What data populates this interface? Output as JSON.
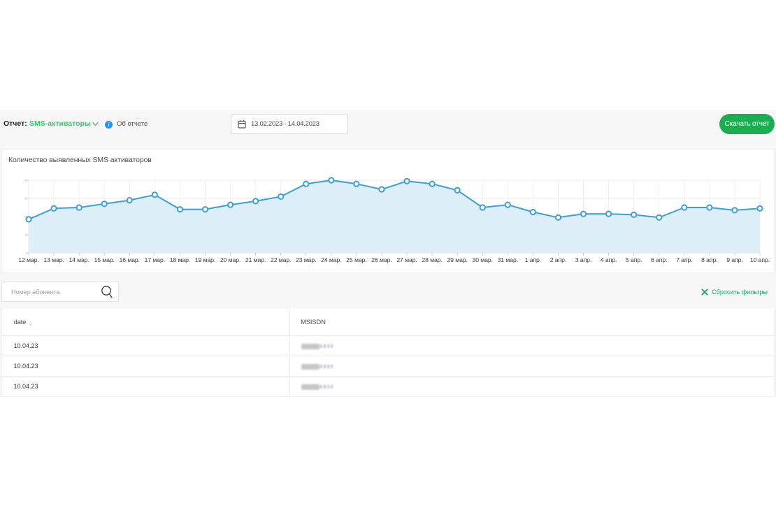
{
  "toolbar": {
    "report_label": "Отчет:",
    "report_value": "SMS-активаторы",
    "about_link": "Об отчете",
    "date_range": "13.02.2023 - 14.04.2023",
    "download_button": "Скачать отчет"
  },
  "colors": {
    "brand_green": "#27d163",
    "button_green": "#1bae50",
    "reset_green": "#12a562",
    "info_blue": "#2593fc",
    "chart_line": "#3ba0d8",
    "chart_fill": "#ddeef8",
    "band_background": "#f7f7f7"
  },
  "chart_data": {
    "type": "area",
    "title": "Количество выявленных SMS активаторов",
    "categories": [
      "12 мар.",
      "13 мар.",
      "14 мар.",
      "15 мар.",
      "16 мар.",
      "17 мар.",
      "18 мар.",
      "19 мар.",
      "20 мар.",
      "21 мар.",
      "22 мар.",
      "23 мар.",
      "24 мар.",
      "25 мар.",
      "26 мар.",
      "27 мар.",
      "28 мар.",
      "29 мар.",
      "30 мар.",
      "31 мар.",
      "1 апр.",
      "2 апр.",
      "3 апр.",
      "4 апр.",
      "5 апр.",
      "6 апр.",
      "7 апр.",
      "8 апр.",
      "9 апр.",
      "10 апр."
    ],
    "values": [
      37,
      49,
      50,
      54,
      58,
      64,
      48,
      48,
      53,
      57,
      62,
      76,
      80,
      76,
      70,
      79,
      76,
      69,
      50,
      53,
      45,
      39,
      43,
      43,
      42,
      39,
      50,
      50,
      47,
      49
    ],
    "xlabel": "",
    "ylabel": "",
    "ylim": [
      0,
      80
    ],
    "yticks": [
      0,
      20,
      40,
      60,
      80
    ],
    "grid": true,
    "legend": false,
    "markers": "circle"
  },
  "filters": {
    "search_placeholder": "Номер абонента",
    "reset_label": "Сбросить фильтры"
  },
  "table": {
    "columns": [
      {
        "label": "date",
        "sortable": true
      },
      {
        "label": "MSISDN",
        "sortable": false
      }
    ],
    "rows": [
      {
        "date": "10.04.23",
        "msisdn": "",
        "msisdn_masked": true
      },
      {
        "date": "10.04.23",
        "msisdn": "",
        "msisdn_masked": true
      },
      {
        "date": "10.04.23",
        "msisdn": "",
        "msisdn_masked": true
      }
    ]
  }
}
